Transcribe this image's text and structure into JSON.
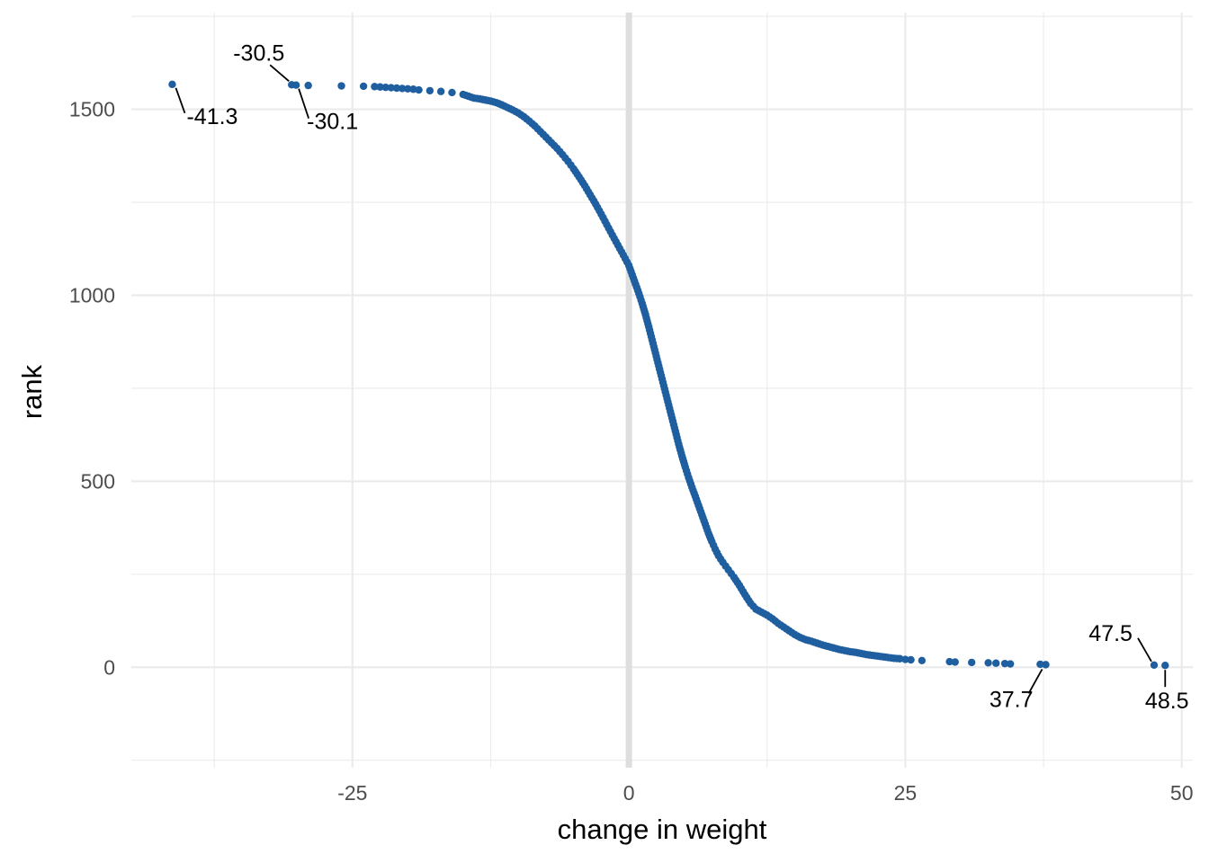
{
  "chart_data": {
    "type": "scatter",
    "title": "",
    "xlabel": "change in weight",
    "ylabel": "rank",
    "xlim": [
      -45,
      51
    ],
    "ylim": [
      -270,
      1760
    ],
    "x_ticks": [
      -25,
      0,
      25,
      50
    ],
    "x_tick_labels": [
      "-25",
      "0",
      "25",
      "50"
    ],
    "y_ticks": [
      0,
      500,
      1000,
      1500
    ],
    "y_tick_labels": [
      "0",
      "500",
      "1000",
      "1500"
    ],
    "grid": true,
    "reference_line_x": 0,
    "point_color": "#1f5fa0",
    "series": [
      {
        "points": [
          [
            -41.3,
            1567
          ],
          [
            -30.5,
            1566
          ],
          [
            -30.1,
            1565
          ],
          [
            -29.0,
            1564
          ],
          [
            -26.0,
            1563
          ],
          [
            -24.0,
            1562
          ],
          [
            -23.0,
            1561
          ],
          [
            -22.5,
            1560
          ],
          [
            -22.0,
            1559
          ],
          [
            -21.5,
            1558
          ],
          [
            -21.0,
            1557
          ],
          [
            -20.5,
            1556
          ],
          [
            -20.0,
            1555
          ],
          [
            -19.5,
            1554
          ],
          [
            -19.0,
            1552
          ],
          [
            -18.0,
            1550
          ],
          [
            -17.0,
            1548
          ],
          [
            -16.0,
            1545
          ],
          [
            -15.0,
            1540
          ],
          [
            -14.5,
            1535
          ],
          [
            -14.0,
            1530
          ],
          [
            -13.5,
            1528
          ],
          [
            -13.0,
            1525
          ],
          [
            -12.5,
            1522
          ],
          [
            -12.0,
            1518
          ],
          [
            -11.5,
            1512
          ],
          [
            -11.0,
            1505
          ],
          [
            -10.5,
            1498
          ],
          [
            -10.0,
            1490
          ],
          [
            -9.5,
            1480
          ],
          [
            -9.0,
            1468
          ],
          [
            -8.5,
            1455
          ],
          [
            -8.0,
            1440
          ],
          [
            -7.5,
            1425
          ],
          [
            -7.0,
            1410
          ],
          [
            -6.5,
            1395
          ],
          [
            -6.0,
            1378
          ],
          [
            -5.5,
            1360
          ],
          [
            -5.0,
            1340
          ],
          [
            -4.5,
            1318
          ],
          [
            -4.0,
            1295
          ],
          [
            -3.5,
            1270
          ],
          [
            -3.0,
            1245
          ],
          [
            -2.5,
            1218
          ],
          [
            -2.0,
            1190
          ],
          [
            -1.5,
            1162
          ],
          [
            -1.0,
            1135
          ],
          [
            -0.5,
            1108
          ],
          [
            0.0,
            1080
          ],
          [
            0.3,
            1055
          ],
          [
            0.6,
            1030
          ],
          [
            0.9,
            1005
          ],
          [
            1.2,
            978
          ],
          [
            1.5,
            948
          ],
          [
            1.8,
            915
          ],
          [
            2.1,
            880
          ],
          [
            2.4,
            845
          ],
          [
            2.7,
            810
          ],
          [
            3.0,
            775
          ],
          [
            3.3,
            740
          ],
          [
            3.6,
            705
          ],
          [
            3.9,
            670
          ],
          [
            4.2,
            635
          ],
          [
            4.5,
            600
          ],
          [
            4.8,
            568
          ],
          [
            5.1,
            538
          ],
          [
            5.4,
            510
          ],
          [
            5.7,
            484
          ],
          [
            6.0,
            460
          ],
          [
            6.3,
            435
          ],
          [
            6.6,
            410
          ],
          [
            6.9,
            385
          ],
          [
            7.2,
            360
          ],
          [
            7.5,
            338
          ],
          [
            7.8,
            318
          ],
          [
            8.1,
            300
          ],
          [
            8.5,
            282
          ],
          [
            9.0,
            262
          ],
          [
            9.5,
            242
          ],
          [
            10.0,
            220
          ],
          [
            10.5,
            195
          ],
          [
            11.0,
            172
          ],
          [
            11.5,
            156
          ],
          [
            12.0,
            148
          ],
          [
            12.5,
            140
          ],
          [
            13.0,
            130
          ],
          [
            13.5,
            118
          ],
          [
            14.0,
            108
          ],
          [
            14.5,
            98
          ],
          [
            15.0,
            88
          ],
          [
            15.5,
            80
          ],
          [
            16.0,
            74
          ],
          [
            16.5,
            70
          ],
          [
            17.0,
            65
          ],
          [
            17.5,
            60
          ],
          [
            18.0,
            56
          ],
          [
            18.5,
            52
          ],
          [
            19.0,
            48
          ],
          [
            19.5,
            45
          ],
          [
            20.0,
            42
          ],
          [
            20.5,
            40
          ],
          [
            21.0,
            37
          ],
          [
            21.5,
            34
          ],
          [
            22.0,
            32
          ],
          [
            22.5,
            30
          ],
          [
            23.0,
            28
          ],
          [
            23.5,
            26
          ],
          [
            24.0,
            24
          ],
          [
            24.5,
            23
          ],
          [
            25.0,
            21
          ],
          [
            25.5,
            20
          ],
          [
            26.5,
            18
          ],
          [
            29.0,
            15
          ],
          [
            29.5,
            14
          ],
          [
            31.0,
            13
          ],
          [
            32.5,
            12
          ],
          [
            33.2,
            11
          ],
          [
            34.0,
            10
          ],
          [
            34.5,
            9
          ],
          [
            37.2,
            8
          ],
          [
            37.7,
            7
          ],
          [
            47.5,
            6
          ],
          [
            48.5,
            5
          ]
        ]
      }
    ],
    "annotations": [
      {
        "text": "-41.3",
        "x": -41.3,
        "y": 1567
      },
      {
        "text": "-30.5",
        "x": -30.5,
        "y": 1566
      },
      {
        "text": "-30.1",
        "x": -30.1,
        "y": 1565
      },
      {
        "text": "37.7",
        "x": 37.7,
        "y": 7
      },
      {
        "text": "47.5",
        "x": 47.5,
        "y": 6
      },
      {
        "text": "48.5",
        "x": 48.5,
        "y": 5
      }
    ]
  }
}
